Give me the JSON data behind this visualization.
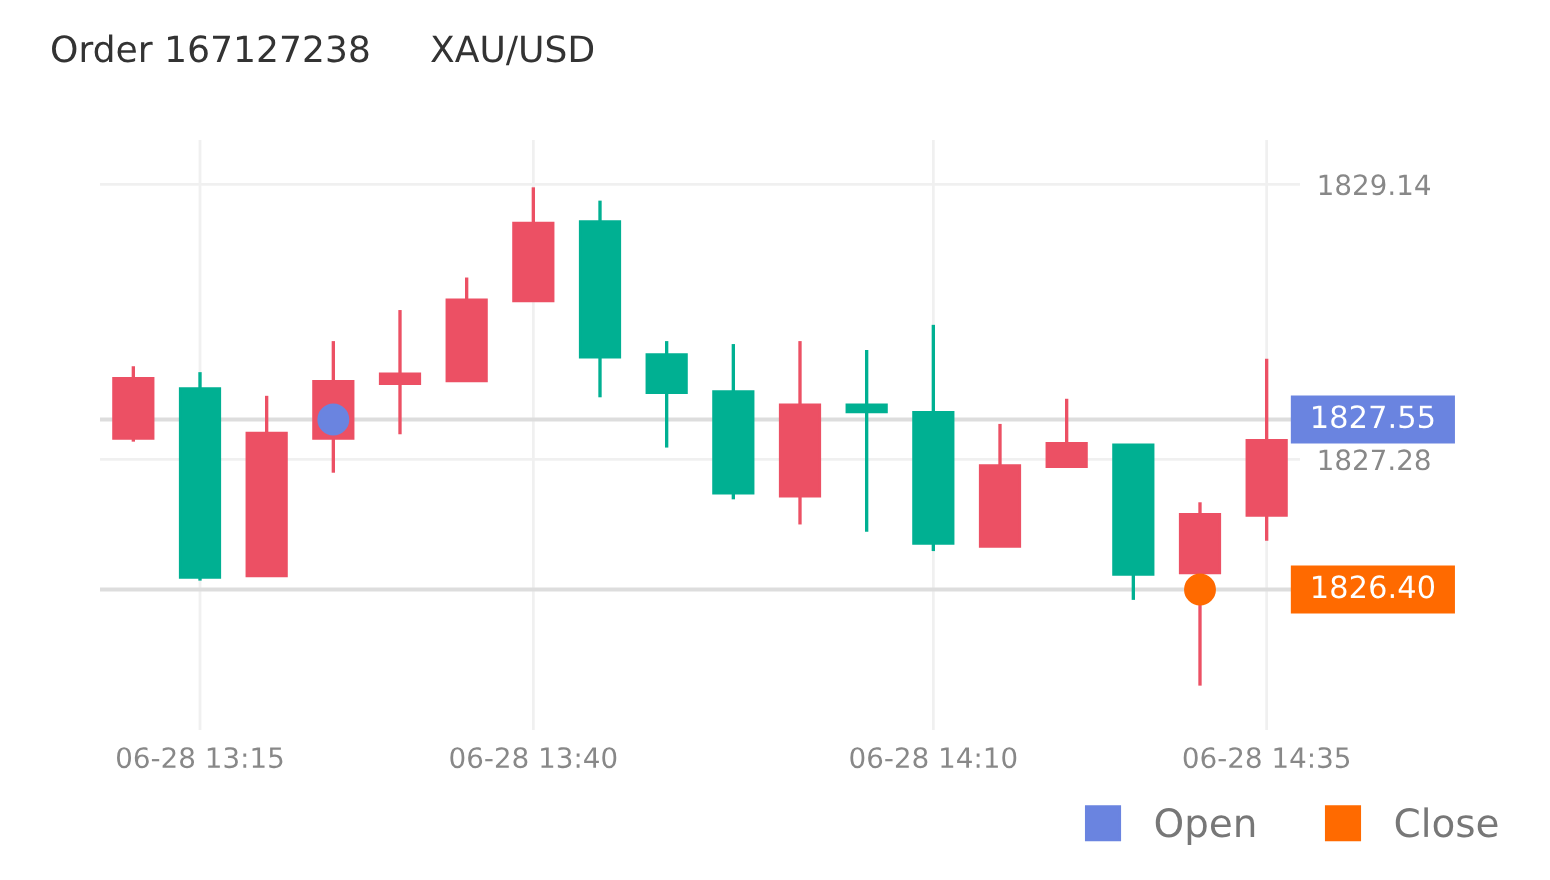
{
  "chart_data": {
    "type": "candlestick",
    "title": "Order 167127238",
    "subtitle": "XAU/USD",
    "categories": [
      null,
      "06-28 13:15",
      null,
      null,
      null,
      null,
      "06-28 13:40",
      null,
      null,
      null,
      null,
      null,
      "06-28 14:10",
      null,
      null,
      null,
      null,
      "06-28 14:35"
    ],
    "ohlc": [
      [
        1827.42,
        1827.91,
        1827.4,
        1827.83
      ],
      [
        1827.76,
        1827.87,
        1826.46,
        1826.48
      ],
      [
        1826.49,
        1827.71,
        1826.49,
        1827.46
      ],
      [
        1827.42,
        1828.08,
        1827.19,
        1827.81
      ],
      [
        1827.79,
        1828.29,
        1827.45,
        1827.86
      ],
      [
        1827.81,
        1828.51,
        1827.81,
        1828.36
      ],
      [
        1828.35,
        1829.12,
        1828.35,
        1828.88
      ],
      [
        1828.89,
        1829.03,
        1827.7,
        1827.97
      ],
      [
        1827.99,
        1828.08,
        1827.36,
        1827.73
      ],
      [
        1827.74,
        1828.06,
        1827.01,
        1827.05
      ],
      [
        1827.03,
        1828.08,
        1826.84,
        1827.65
      ],
      [
        1827.65,
        1828.02,
        1826.79,
        1827.6
      ],
      [
        1827.6,
        1828.19,
        1826.66,
        1826.71
      ],
      [
        1826.69,
        1827.52,
        1826.69,
        1827.24
      ],
      [
        1827.23,
        1827.69,
        1827.23,
        1827.39
      ],
      [
        1827.38,
        1827.38,
        1826.33,
        1826.5
      ],
      [
        1826.51,
        1826.99,
        1825.75,
        1826.91
      ],
      [
        1826.9,
        1827.96,
        1826.73,
        1827.41
      ]
    ],
    "colors": [
      "#ec5064",
      "#00b092",
      "#ec5064",
      "#ec5064",
      "#ec5064",
      "#ec5064",
      "#ec5064",
      "#00b092",
      "#00b092",
      "#00b092",
      "#ec5064",
      "#00b092",
      "#00b092",
      "#ec5064",
      "#ec5064",
      "#00b092",
      "#ec5064",
      "#ec5064"
    ],
    "series": [
      {
        "name": "Open",
        "type": "scatter",
        "color": "#6a84e0",
        "values": [
          null,
          null,
          null,
          1827.55,
          null,
          null,
          null,
          null,
          null,
          null,
          null,
          null,
          null,
          null,
          null,
          null,
          null,
          null
        ]
      },
      {
        "name": "Close",
        "type": "scatter",
        "color": "#ff6a00",
        "values": [
          null,
          null,
          null,
          null,
          null,
          null,
          null,
          null,
          null,
          null,
          null,
          null,
          null,
          null,
          null,
          null,
          1826.4,
          null
        ]
      }
    ],
    "ref_lines": [
      {
        "axis": "y",
        "value": 1827.55,
        "label": "1827.55",
        "color": "#dddddd"
      },
      {
        "axis": "y",
        "value": 1826.4,
        "label": "1826.40",
        "color": "#dddddd"
      }
    ],
    "ylim": [
      1825.45,
      1829.44
    ],
    "yticks": [
      1829.14,
      1827.28
    ],
    "grid": true,
    "marker": "circle",
    "legend": "bottom right"
  }
}
